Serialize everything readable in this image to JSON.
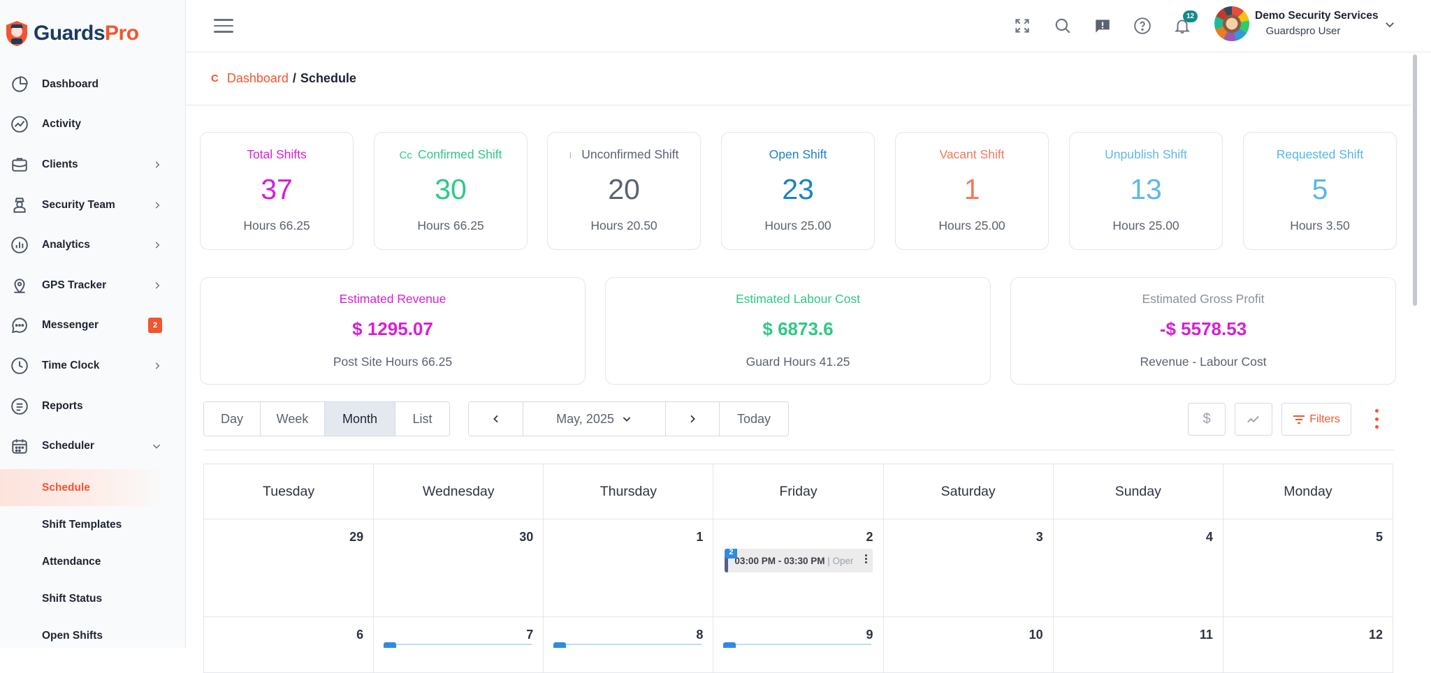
{
  "brand": {
    "name_part1": "Guards",
    "name_part2": "Pro"
  },
  "sidebar": {
    "items": [
      {
        "label": "Dashboard",
        "icon": "pie-chart-icon",
        "chevron": false
      },
      {
        "label": "Activity",
        "icon": "activity-chart-icon",
        "chevron": false
      },
      {
        "label": "Clients",
        "icon": "briefcase-icon",
        "chevron": true
      },
      {
        "label": "Security Team",
        "icon": "guard-icon",
        "chevron": true
      },
      {
        "label": "Analytics",
        "icon": "bar-chart-icon",
        "chevron": true
      },
      {
        "label": "GPS Tracker",
        "icon": "map-pin-icon",
        "chevron": true
      },
      {
        "label": "Messenger",
        "icon": "chat-bubble-icon",
        "badge": "2"
      },
      {
        "label": "Time Clock",
        "icon": "clock-icon",
        "chevron": true
      },
      {
        "label": "Reports",
        "icon": "document-icon",
        "chevron": false
      },
      {
        "label": "Scheduler",
        "icon": "calendar-icon",
        "chevron": "down"
      }
    ],
    "sub_items": [
      {
        "label": "Schedule",
        "active": true
      },
      {
        "label": "Shift Templates"
      },
      {
        "label": "Attendance"
      },
      {
        "label": "Shift Status"
      },
      {
        "label": "Open Shifts"
      }
    ]
  },
  "topbar": {
    "notification_count": "12",
    "user_company": "Demo Security Services",
    "user_role": "Guardspro User",
    "icons": [
      "fullscreen-icon",
      "search-icon",
      "feedback-icon",
      "help-icon",
      "bell-icon"
    ]
  },
  "breadcrumb": {
    "marker": "C",
    "link": "Dashboard",
    "separator": "/",
    "current": "Schedule"
  },
  "stats": [
    {
      "prefix": "",
      "label": "Total Shifts",
      "value": "37",
      "hours": "Hours 66.25",
      "color": "#d61fd6"
    },
    {
      "prefix": "Cc",
      "label": "Confirmed Shift",
      "value": "30",
      "hours": "Hours 66.25",
      "color": "#2ec984"
    },
    {
      "prefix": "I",
      "label": "Unconfirmed Shift",
      "value": "20",
      "hours": "Hours 20.50",
      "color": "#5b6270"
    },
    {
      "prefix": "",
      "label": "Open Shift",
      "value": "23",
      "hours": "Hours 25.00",
      "color": "#1a82c9"
    },
    {
      "prefix": "",
      "label": "Vacant Shift",
      "value": "1",
      "hours": "Hours 25.00",
      "color": "#f07a5c"
    },
    {
      "prefix": "",
      "label": "Unpublish Shift",
      "value": "13",
      "hours": "Hours 25.00",
      "color": "#5fb9e6"
    },
    {
      "prefix": "",
      "label": "Requested Shift",
      "value": "5",
      "hours": "Hours 3.50",
      "color": "#55b7e8"
    }
  ],
  "estimates": [
    {
      "label": "Estimated Revenue",
      "value": "$ 1295.07",
      "sub": "Post Site Hours 66.25",
      "label_color": "#d61fd6",
      "value_color": "#d61fd6"
    },
    {
      "label": "Estimated Labour Cost",
      "value": "$ 6873.6",
      "sub": "Guard Hours 41.25",
      "label_color": "#2ec984",
      "value_color": "#2ec984"
    },
    {
      "label": "Estimated Gross Profit",
      "value": "-$ 5578.53",
      "sub": "Revenue - Labour Cost",
      "label_color": "#8a909b",
      "value_color": "#d61fd6"
    }
  ],
  "toolbar": {
    "views": [
      "Day",
      "Week",
      "Month",
      "List"
    ],
    "active_view": "Month",
    "prev_label": "‹",
    "period": "May, 2025",
    "next_label": "›",
    "today_label": "Today",
    "dollar_label": "$",
    "filters_label": "Filters"
  },
  "calendar": {
    "weekdays": [
      "Tuesday",
      "Wednesday",
      "Thursday",
      "Friday",
      "Saturday",
      "Sunday",
      "Monday"
    ],
    "week1": [
      "29",
      "30",
      "1",
      "2",
      "3",
      "4",
      "5"
    ],
    "week2": [
      "6",
      "7",
      "8",
      "9",
      "10",
      "11",
      "12"
    ],
    "event": {
      "count": "2",
      "time": "03:00 PM - 03:30 PM",
      "sep": "|",
      "status": "Open"
    }
  }
}
